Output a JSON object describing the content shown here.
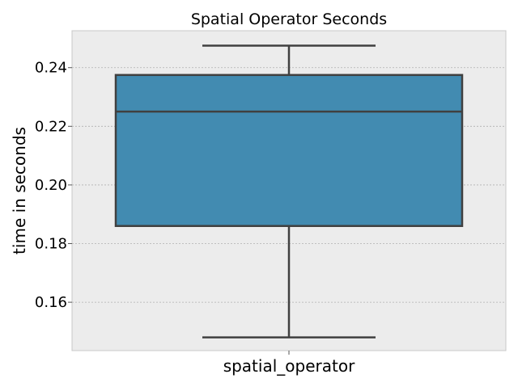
{
  "chart_data": {
    "type": "box",
    "title": "Spatial Operator Seconds",
    "xlabel": "",
    "ylabel": "time in seconds",
    "categories": [
      "spatial_operator"
    ],
    "boxes": [
      {
        "category": "spatial_operator",
        "whisker_low": 0.148,
        "q1": 0.186,
        "median": 0.225,
        "q3": 0.2375,
        "whisker_high": 0.2475
      }
    ],
    "ylim": [
      0.1435,
      0.2526
    ],
    "yticks": [
      0.16,
      0.18,
      0.2,
      0.22,
      0.24
    ],
    "ytick_labels": [
      "0.16",
      "0.18",
      "0.20",
      "0.22",
      "0.24"
    ],
    "grid": true,
    "colors": {
      "box_fill": "#428bb1",
      "line": "#404040",
      "axes_bg": "#ececec",
      "grid": "#b0b0b0",
      "spine": "#c8c8c8"
    }
  }
}
